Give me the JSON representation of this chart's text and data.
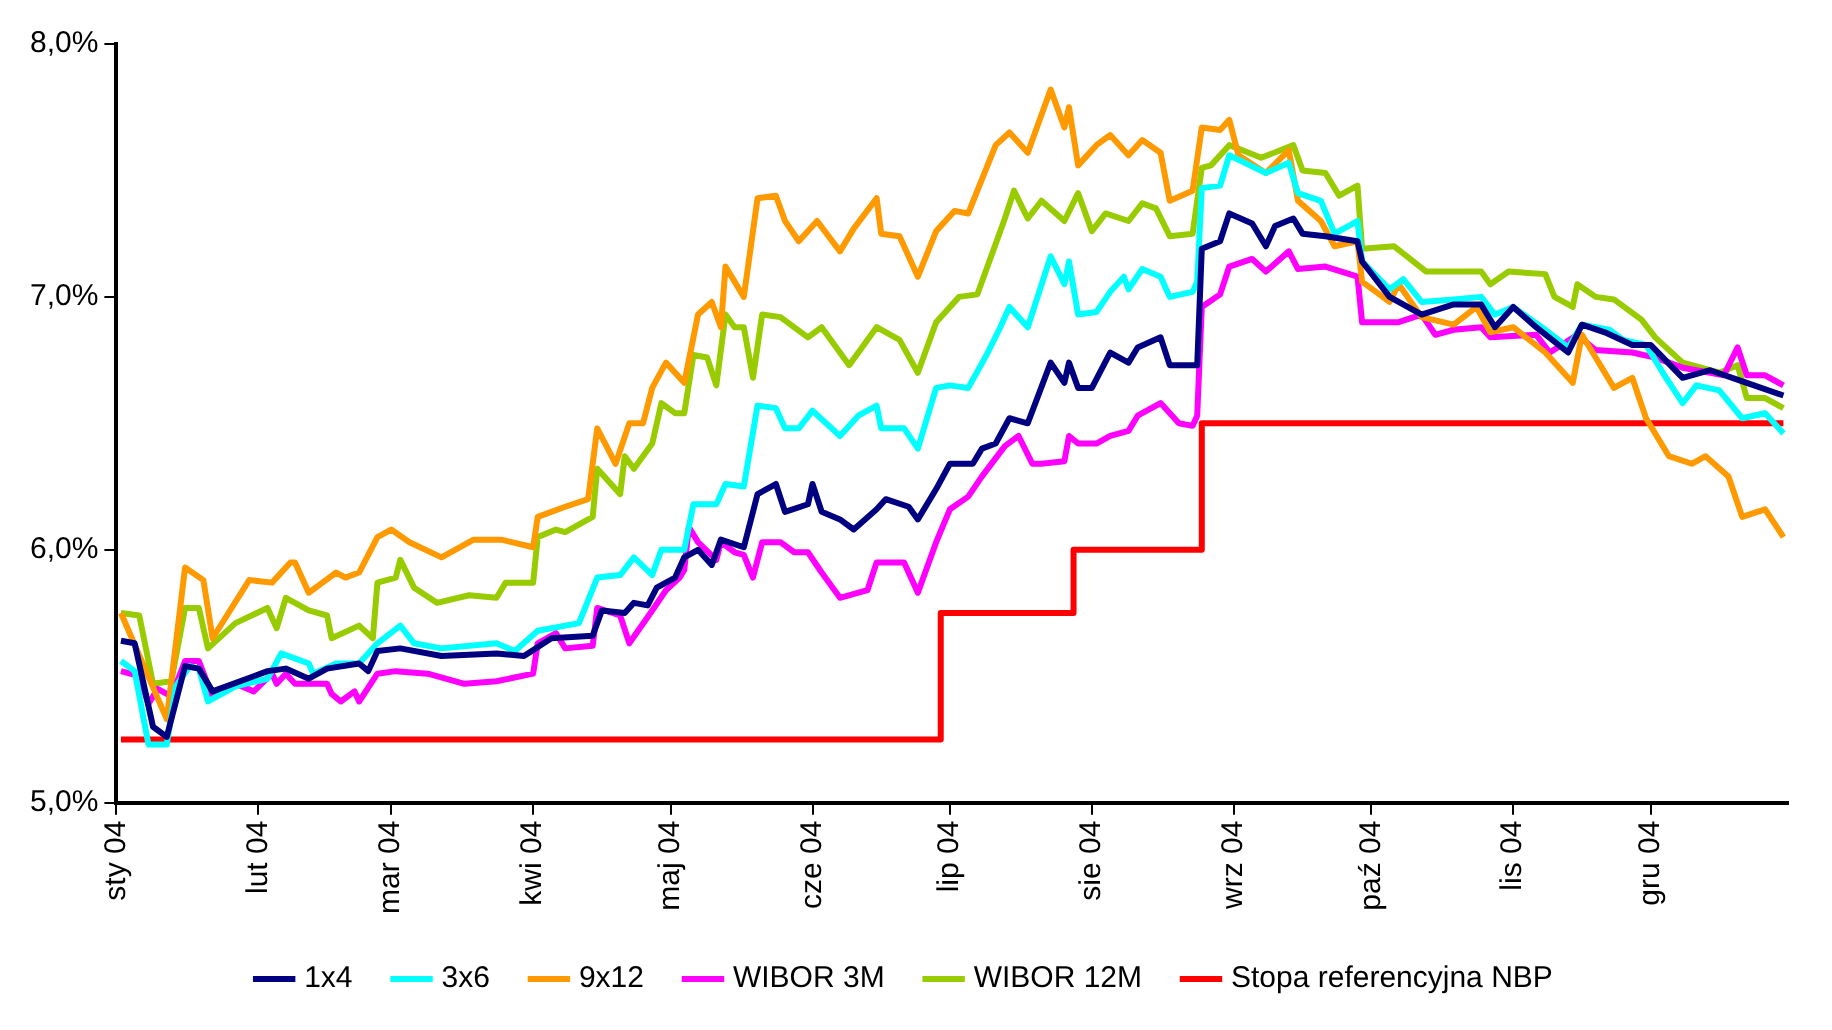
{
  "chart_data": {
    "type": "line",
    "xlim": [
      "2004-01-01",
      "2004-12-31"
    ],
    "xticks": [
      {
        "value": "2004-01-01",
        "label": "sty 04"
      },
      {
        "value": "2004-02-01",
        "label": "lut 04"
      },
      {
        "value": "2004-03-01",
        "label": "mar 04"
      },
      {
        "value": "2004-04-01",
        "label": "kwi 04"
      },
      {
        "value": "2004-05-01",
        "label": "maj 04"
      },
      {
        "value": "2004-06-01",
        "label": "cze 04"
      },
      {
        "value": "2004-07-01",
        "label": "lip 04"
      },
      {
        "value": "2004-08-01",
        "label": "sie 04"
      },
      {
        "value": "2004-09-01",
        "label": "wrz 04"
      },
      {
        "value": "2004-10-01",
        "label": "paź 04"
      },
      {
        "value": "2004-11-01",
        "label": "lis 04"
      },
      {
        "value": "2004-12-01",
        "label": "gru 04"
      }
    ],
    "ylim": [
      5,
      8
    ],
    "yticks": [
      {
        "value": 5,
        "label": "5,0%"
      },
      {
        "value": 6,
        "label": "6,0%"
      },
      {
        "value": 7,
        "label": "7,0%"
      },
      {
        "value": 8,
        "label": "8,0%"
      }
    ],
    "legend": "bottom",
    "series": [
      {
        "name": "1x4",
        "color": "#000080",
        "x": [
          "2004-01-02",
          "2004-01-05",
          "2004-01-09",
          "2004-01-12",
          "2004-01-16",
          "2004-01-19",
          "2004-01-22",
          "2004-01-31",
          "2004-02-03",
          "2004-02-07",
          "2004-02-12",
          "2004-02-16",
          "2004-02-23",
          "2004-02-25",
          "2004-02-27",
          "2004-03-03",
          "2004-03-12",
          "2004-03-24",
          "2004-03-30",
          "2004-04-05",
          "2004-04-14",
          "2004-04-16",
          "2004-04-21",
          "2004-04-23",
          "2004-04-26",
          "2004-04-28",
          "2004-05-02",
          "2004-05-04",
          "2004-05-07",
          "2004-05-10",
          "2004-05-12",
          "2004-05-17",
          "2004-05-20",
          "2004-05-24",
          "2004-05-26",
          "2004-05-31",
          "2004-06-01",
          "2004-06-03",
          "2004-06-07",
          "2004-06-10",
          "2004-06-15",
          "2004-06-17",
          "2004-06-22",
          "2004-06-24",
          "2004-06-28",
          "2004-07-01",
          "2004-07-06",
          "2004-07-08",
          "2004-07-11",
          "2004-07-14",
          "2004-07-18",
          "2004-07-23",
          "2004-07-26",
          "2004-07-27",
          "2004-07-29",
          "2004-08-01",
          "2004-08-05",
          "2004-08-09",
          "2004-08-11",
          "2004-08-16",
          "2004-08-18",
          "2004-08-24",
          "2004-08-25",
          "2004-08-29",
          "2004-08-31",
          "2004-09-05",
          "2004-09-08",
          "2004-09-10",
          "2004-09-14",
          "2004-09-16",
          "2004-09-21",
          "2004-09-28",
          "2004-09-29",
          "2004-10-05",
          "2004-10-12",
          "2004-10-19",
          "2004-10-25",
          "2004-10-28",
          "2004-11-01",
          "2004-11-06",
          "2004-11-13",
          "2004-11-16",
          "2004-11-21",
          "2004-11-27",
          "2004-12-01",
          "2004-12-08",
          "2004-12-14",
          "2004-12-22",
          "2004-12-30"
        ],
        "values": [
          5.64,
          5.63,
          5.3,
          5.26,
          5.54,
          5.53,
          5.44,
          5.5,
          5.52,
          5.53,
          5.49,
          5.53,
          5.55,
          5.52,
          5.6,
          5.61,
          5.58,
          5.59,
          5.58,
          5.65,
          5.66,
          5.76,
          5.75,
          5.79,
          5.78,
          5.85,
          5.89,
          5.97,
          6.0,
          5.94,
          6.04,
          6.01,
          6.22,
          6.26,
          6.15,
          6.18,
          6.26,
          6.15,
          6.12,
          6.08,
          6.16,
          6.2,
          6.17,
          6.12,
          6.24,
          6.34,
          6.34,
          6.4,
          6.42,
          6.52,
          6.5,
          6.74,
          6.66,
          6.74,
          6.64,
          6.64,
          6.78,
          6.74,
          6.8,
          6.84,
          6.73,
          6.73,
          7.19,
          7.22,
          7.33,
          7.29,
          7.2,
          7.28,
          7.31,
          7.25,
          7.24,
          7.22,
          7.14,
          7.0,
          6.93,
          6.97,
          6.97,
          6.88,
          6.96,
          6.88,
          6.78,
          6.89,
          6.86,
          6.81,
          6.81,
          6.68,
          6.71,
          6.66,
          6.61
        ]
      },
      {
        "name": "3x6",
        "color": "#00ffff",
        "x": [
          "2004-01-02",
          "2004-01-05",
          "2004-01-08",
          "2004-01-12",
          "2004-01-14",
          "2004-01-17",
          "2004-01-19",
          "2004-01-21",
          "2004-01-27",
          "2004-02-03",
          "2004-02-06",
          "2004-02-12",
          "2004-02-13",
          "2004-02-18",
          "2004-02-23",
          "2004-02-27",
          "2004-03-03",
          "2004-03-06",
          "2004-03-12",
          "2004-03-24",
          "2004-03-28",
          "2004-04-02",
          "2004-04-11",
          "2004-04-15",
          "2004-04-20",
          "2004-04-23",
          "2004-04-27",
          "2004-04-29",
          "2004-05-04",
          "2004-05-06",
          "2004-05-11",
          "2004-05-13",
          "2004-05-17",
          "2004-05-20",
          "2004-05-24",
          "2004-05-26",
          "2004-05-29",
          "2004-06-01",
          "2004-06-07",
          "2004-06-11",
          "2004-06-15",
          "2004-06-16",
          "2004-06-21",
          "2004-06-24",
          "2004-06-28",
          "2004-07-01",
          "2004-07-05",
          "2004-07-09",
          "2004-07-12",
          "2004-07-14",
          "2004-07-18",
          "2004-07-23",
          "2004-07-26",
          "2004-07-27",
          "2004-07-29",
          "2004-08-02",
          "2004-08-05",
          "2004-08-08",
          "2004-08-09",
          "2004-08-12",
          "2004-08-16",
          "2004-08-18",
          "2004-08-23",
          "2004-08-24",
          "2004-08-25",
          "2004-08-29",
          "2004-08-31",
          "2004-09-08",
          "2004-09-13",
          "2004-09-15",
          "2004-09-20",
          "2004-09-23",
          "2004-09-28",
          "2004-09-29",
          "2004-10-05",
          "2004-10-08",
          "2004-10-12",
          "2004-10-19",
          "2004-10-25",
          "2004-10-28",
          "2004-11-01",
          "2004-11-08",
          "2004-11-13",
          "2004-11-16",
          "2004-11-22",
          "2004-11-25",
          "2004-11-30",
          "2004-12-04",
          "2004-12-08",
          "2004-12-11",
          "2004-12-16",
          "2004-12-21",
          "2004-12-26",
          "2004-12-30"
        ],
        "values": [
          5.56,
          5.52,
          5.23,
          5.23,
          5.46,
          5.54,
          5.53,
          5.4,
          5.46,
          5.49,
          5.59,
          5.55,
          5.51,
          5.55,
          5.55,
          5.63,
          5.7,
          5.63,
          5.61,
          5.63,
          5.6,
          5.68,
          5.71,
          5.89,
          5.9,
          5.97,
          5.9,
          6.0,
          6.0,
          6.18,
          6.18,
          6.26,
          6.25,
          6.57,
          6.56,
          6.48,
          6.48,
          6.55,
          6.45,
          6.53,
          6.57,
          6.48,
          6.48,
          6.4,
          6.64,
          6.65,
          6.64,
          6.77,
          6.88,
          6.96,
          6.88,
          7.16,
          7.05,
          7.14,
          6.93,
          6.94,
          7.02,
          7.08,
          7.03,
          7.11,
          7.08,
          7.0,
          7.02,
          7.06,
          7.43,
          7.44,
          7.56,
          7.49,
          7.53,
          7.41,
          7.38,
          7.25,
          7.3,
          7.14,
          7.03,
          7.07,
          6.98,
          6.99,
          7.0,
          6.93,
          6.96,
          6.87,
          6.8,
          6.89,
          6.87,
          6.83,
          6.81,
          6.69,
          6.58,
          6.65,
          6.63,
          6.52,
          6.54,
          6.46
        ]
      },
      {
        "name": "9x12",
        "color": "#ff9900",
        "x": [
          "2004-01-02",
          "2004-01-12",
          "2004-01-16",
          "2004-01-20",
          "2004-01-22",
          "2004-01-30",
          "2004-02-04",
          "2004-02-08",
          "2004-02-09",
          "2004-02-12",
          "2004-02-15",
          "2004-02-18",
          "2004-02-20",
          "2004-02-23",
          "2004-02-27",
          "2004-03-01",
          "2004-03-05",
          "2004-03-12",
          "2004-03-19",
          "2004-03-25",
          "2004-04-01",
          "2004-04-02",
          "2004-04-08",
          "2004-04-13",
          "2004-04-15",
          "2004-04-19",
          "2004-04-22",
          "2004-04-25",
          "2004-04-27",
          "2004-04-30",
          "2004-05-04",
          "2004-05-07",
          "2004-05-10",
          "2004-05-12",
          "2004-05-13",
          "2004-05-17",
          "2004-05-20",
          "2004-05-24",
          "2004-05-26",
          "2004-05-29",
          "2004-06-02",
          "2004-06-07",
          "2004-06-10",
          "2004-06-15",
          "2004-06-16",
          "2004-06-20",
          "2004-06-24",
          "2004-06-28",
          "2004-07-02",
          "2004-07-05",
          "2004-07-11",
          "2004-07-14",
          "2004-07-18",
          "2004-07-23",
          "2004-07-26",
          "2004-07-27",
          "2004-07-29",
          "2004-08-02",
          "2004-08-05",
          "2004-08-09",
          "2004-08-12",
          "2004-08-16",
          "2004-08-18",
          "2004-08-23",
          "2004-08-25",
          "2004-08-29",
          "2004-08-31",
          "2004-09-02",
          "2004-09-08",
          "2004-09-13",
          "2004-09-15",
          "2004-09-20",
          "2004-09-23",
          "2004-09-28",
          "2004-09-29",
          "2004-10-05",
          "2004-10-07",
          "2004-10-12",
          "2004-10-19",
          "2004-10-24",
          "2004-10-27",
          "2004-11-01",
          "2004-11-08",
          "2004-11-14",
          "2004-11-16",
          "2004-11-23",
          "2004-11-27",
          "2004-11-30",
          "2004-12-05",
          "2004-12-10",
          "2004-12-13",
          "2004-12-18",
          "2004-12-21",
          "2004-12-26",
          "2004-12-30"
        ],
        "values": [
          5.75,
          5.33,
          5.93,
          5.88,
          5.65,
          5.88,
          5.87,
          5.95,
          5.95,
          5.83,
          5.87,
          5.91,
          5.89,
          5.91,
          6.05,
          6.08,
          6.03,
          5.97,
          6.04,
          6.04,
          6.01,
          6.13,
          6.17,
          6.2,
          6.48,
          6.34,
          6.5,
          6.5,
          6.64,
          6.74,
          6.66,
          6.93,
          6.98,
          6.88,
          7.12,
          7.0,
          7.39,
          7.4,
          7.3,
          7.22,
          7.3,
          7.18,
          7.27,
          7.39,
          7.25,
          7.24,
          7.08,
          7.26,
          7.34,
          7.33,
          7.6,
          7.65,
          7.57,
          7.82,
          7.67,
          7.75,
          7.52,
          7.6,
          7.64,
          7.56,
          7.62,
          7.57,
          7.38,
          7.42,
          7.67,
          7.66,
          7.7,
          7.56,
          7.49,
          7.58,
          7.38,
          7.3,
          7.2,
          7.22,
          7.06,
          6.98,
          7.05,
          6.92,
          6.89,
          6.96,
          6.86,
          6.88,
          6.78,
          6.66,
          6.85,
          6.64,
          6.68,
          6.52,
          6.37,
          6.34,
          6.37,
          6.29,
          6.13,
          6.16,
          6.05
        ]
      },
      {
        "name": "WIBOR 3M",
        "color": "#ff00ff",
        "x": [
          "2004-01-02",
          "2004-01-06",
          "2004-01-08",
          "2004-01-10",
          "2004-01-13",
          "2004-01-16",
          "2004-01-19",
          "2004-01-22",
          "2004-01-27",
          "2004-01-31",
          "2004-02-04",
          "2004-02-05",
          "2004-02-07",
          "2004-02-09",
          "2004-02-16",
          "2004-02-17",
          "2004-02-19",
          "2004-02-22",
          "2004-02-23",
          "2004-02-27",
          "2004-03-02",
          "2004-03-09",
          "2004-03-17",
          "2004-03-24",
          "2004-04-01",
          "2004-04-02",
          "2004-04-06",
          "2004-04-08",
          "2004-04-14",
          "2004-04-15",
          "2004-04-20",
          "2004-04-22",
          "2004-04-27",
          "2004-04-30",
          "2004-05-03",
          "2004-05-04",
          "2004-05-05",
          "2004-05-07",
          "2004-05-11",
          "2004-05-12",
          "2004-05-15",
          "2004-05-17",
          "2004-05-19",
          "2004-05-21",
          "2004-05-25",
          "2004-05-28",
          "2004-05-31",
          "2004-06-03",
          "2004-06-07",
          "2004-06-13",
          "2004-06-15",
          "2004-06-21",
          "2004-06-24",
          "2004-06-28",
          "2004-07-01",
          "2004-07-05",
          "2004-07-08",
          "2004-07-13",
          "2004-07-16",
          "2004-07-19",
          "2004-07-21",
          "2004-07-26",
          "2004-07-27",
          "2004-07-29",
          "2004-08-02",
          "2004-08-05",
          "2004-08-09",
          "2004-08-11",
          "2004-08-16",
          "2004-08-20",
          "2004-08-23",
          "2004-08-24",
          "2004-08-25",
          "2004-08-29",
          "2004-08-31",
          "2004-09-05",
          "2004-09-08",
          "2004-09-13",
          "2004-09-15",
          "2004-09-21",
          "2004-09-28",
          "2004-09-29",
          "2004-10-07",
          "2004-10-12",
          "2004-10-15",
          "2004-10-19",
          "2004-10-25",
          "2004-10-27",
          "2004-11-06",
          "2004-11-09",
          "2004-11-15",
          "2004-11-19",
          "2004-11-27",
          "2004-12-02",
          "2004-12-08",
          "2004-12-17",
          "2004-12-20",
          "2004-12-22",
          "2004-12-26",
          "2004-12-30"
        ],
        "values": [
          5.52,
          5.5,
          5.39,
          5.45,
          5.42,
          5.56,
          5.56,
          5.42,
          5.47,
          5.44,
          5.51,
          5.47,
          5.51,
          5.47,
          5.47,
          5.43,
          5.4,
          5.44,
          5.4,
          5.51,
          5.52,
          5.51,
          5.47,
          5.48,
          5.51,
          5.63,
          5.67,
          5.61,
          5.62,
          5.77,
          5.74,
          5.63,
          5.76,
          5.84,
          5.89,
          5.92,
          6.09,
          6.03,
          5.96,
          6.03,
          5.99,
          5.98,
          5.89,
          6.03,
          6.03,
          5.99,
          5.99,
          5.91,
          5.81,
          5.84,
          5.95,
          5.95,
          5.83,
          6.03,
          6.16,
          6.21,
          6.29,
          6.41,
          6.45,
          6.34,
          6.34,
          6.35,
          6.45,
          6.42,
          6.42,
          6.45,
          6.47,
          6.53,
          6.58,
          6.5,
          6.49,
          6.53,
          6.96,
          7.01,
          7.12,
          7.15,
          7.1,
          7.18,
          7.11,
          7.12,
          7.08,
          6.9,
          6.9,
          6.93,
          6.85,
          6.87,
          6.88,
          6.84,
          6.85,
          6.78,
          6.85,
          6.79,
          6.78,
          6.76,
          6.72,
          6.69,
          6.8,
          6.69,
          6.69,
          6.65
        ]
      },
      {
        "name": "WIBOR 12M",
        "color": "#99cc00",
        "x": [
          "2004-01-02",
          "2004-01-06",
          "2004-01-09",
          "2004-01-13",
          "2004-01-16",
          "2004-01-19",
          "2004-01-21",
          "2004-01-27",
          "2004-02-03",
          "2004-02-05",
          "2004-02-07",
          "2004-02-12",
          "2004-02-16",
          "2004-02-17",
          "2004-02-23",
          "2004-02-26",
          "2004-02-27",
          "2004-03-02",
          "2004-03-03",
          "2004-03-06",
          "2004-03-11",
          "2004-03-18",
          "2004-03-24",
          "2004-03-26",
          "2004-04-01",
          "2004-04-02",
          "2004-04-06",
          "2004-04-08",
          "2004-04-14",
          "2004-04-15",
          "2004-04-20",
          "2004-04-21",
          "2004-04-23",
          "2004-04-27",
          "2004-04-29",
          "2004-05-02",
          "2004-05-04",
          "2004-05-06",
          "2004-05-09",
          "2004-05-11",
          "2004-05-13",
          "2004-05-15",
          "2004-05-17",
          "2004-05-19",
          "2004-05-21",
          "2004-05-25",
          "2004-05-31",
          "2004-06-03",
          "2004-06-09",
          "2004-06-15",
          "2004-06-20",
          "2004-06-24",
          "2004-06-28",
          "2004-07-03",
          "2004-07-07",
          "2004-07-13",
          "2004-07-15",
          "2004-07-18",
          "2004-07-21",
          "2004-07-26",
          "2004-07-29",
          "2004-08-01",
          "2004-08-04",
          "2004-08-09",
          "2004-08-12",
          "2004-08-15",
          "2004-08-18",
          "2004-08-23",
          "2004-08-25",
          "2004-08-27",
          "2004-08-31",
          "2004-09-07",
          "2004-09-14",
          "2004-09-16",
          "2004-09-21",
          "2004-09-24",
          "2004-09-28",
          "2004-09-29",
          "2004-10-06",
          "2004-10-13",
          "2004-10-25",
          "2004-10-27",
          "2004-10-31",
          "2004-11-08",
          "2004-11-10",
          "2004-11-14",
          "2004-11-15",
          "2004-11-19",
          "2004-11-23",
          "2004-11-29",
          "2004-12-02",
          "2004-12-08",
          "2004-12-16",
          "2004-12-20",
          "2004-12-22",
          "2004-12-26",
          "2004-12-30"
        ],
        "values": [
          5.75,
          5.74,
          5.47,
          5.48,
          5.77,
          5.77,
          5.61,
          5.71,
          5.77,
          5.69,
          5.81,
          5.76,
          5.74,
          5.65,
          5.7,
          5.65,
          5.87,
          5.89,
          5.96,
          5.85,
          5.79,
          5.82,
          5.81,
          5.87,
          5.87,
          6.05,
          6.08,
          6.07,
          6.13,
          6.32,
          6.22,
          6.37,
          6.32,
          6.42,
          6.58,
          6.54,
          6.54,
          6.77,
          6.76,
          6.65,
          6.93,
          6.88,
          6.88,
          6.68,
          6.93,
          6.92,
          6.84,
          6.88,
          6.73,
          6.88,
          6.83,
          6.7,
          6.9,
          7.0,
          7.01,
          7.31,
          7.42,
          7.31,
          7.38,
          7.3,
          7.41,
          7.26,
          7.33,
          7.3,
          7.37,
          7.35,
          7.24,
          7.25,
          7.51,
          7.52,
          7.6,
          7.55,
          7.6,
          7.5,
          7.49,
          7.4,
          7.44,
          7.19,
          7.2,
          7.1,
          7.1,
          7.05,
          7.1,
          7.09,
          7.0,
          6.96,
          7.05,
          7.0,
          6.99,
          6.91,
          6.84,
          6.74,
          6.7,
          6.73,
          6.6,
          6.6,
          6.56
        ]
      },
      {
        "name": "Stopa referencyjna NBP",
        "color": "#ff0000",
        "type": "step",
        "x": [
          "2004-01-02",
          "2004-06-29",
          "2004-07-28",
          "2004-08-25",
          "2004-12-30"
        ],
        "values": [
          5.25,
          5.75,
          6.0,
          6.5,
          6.5
        ]
      }
    ]
  }
}
